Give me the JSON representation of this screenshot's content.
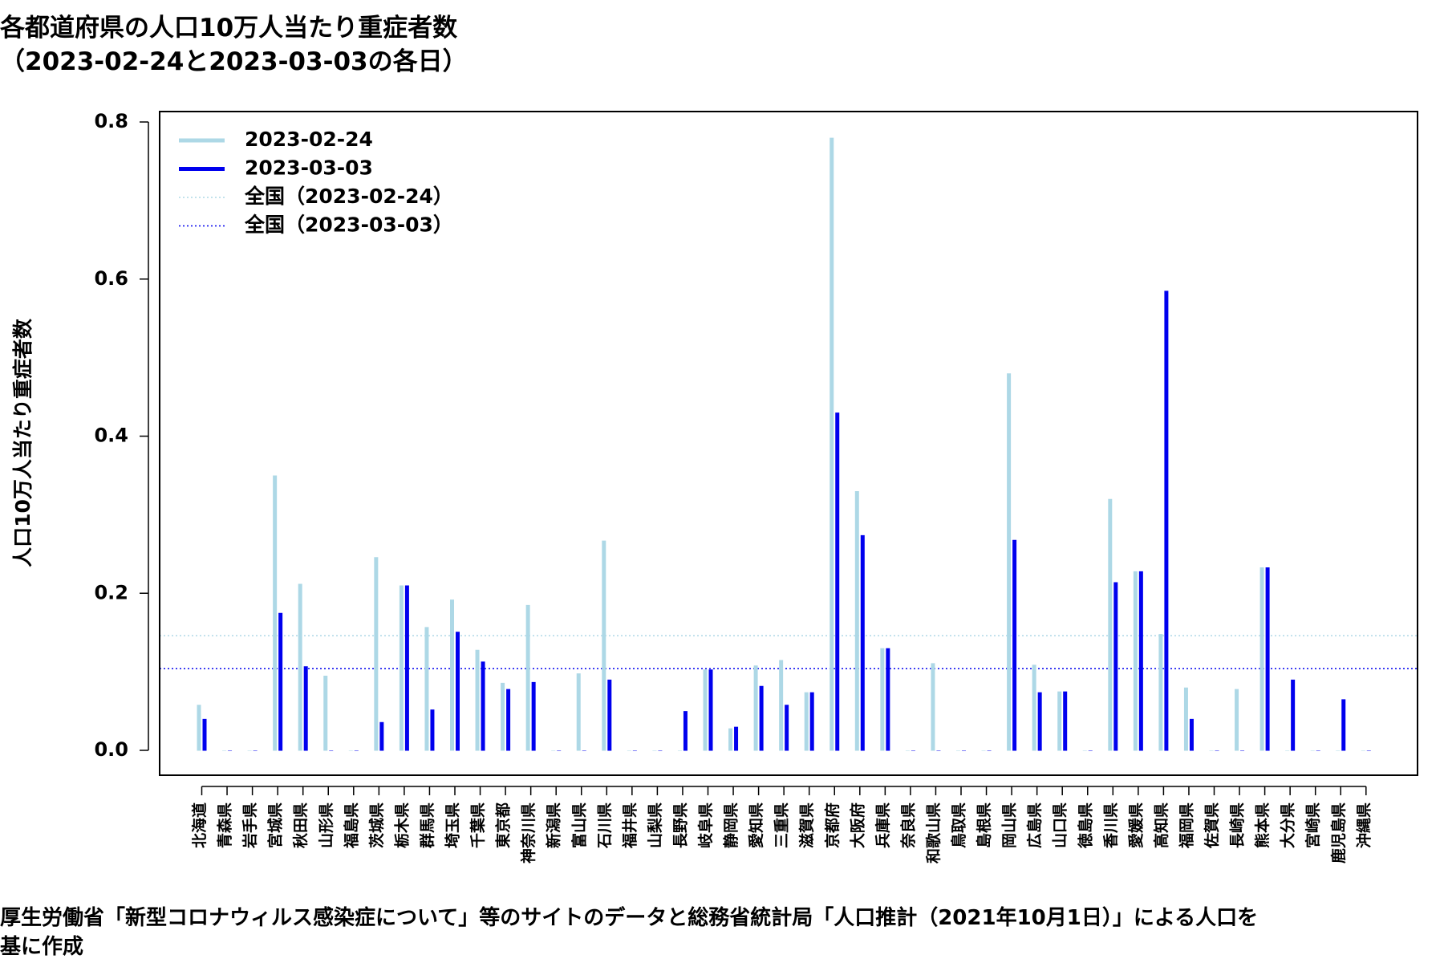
{
  "title": {
    "line1": "各都道府県の人口10万人当たり重症者数",
    "line2": "（2023-02-24と2023-03-03の各日）"
  },
  "footnote": {
    "line1": "厚生労働省「新型コロナウィルス感染症について」等のサイトのデータと総務省統計局「人口推計（2021年10月1日）」による人口を",
    "line2": "基に作成"
  },
  "colors": {
    "series_0224": "#add8e6",
    "series_0303": "#0000ee",
    "national_0224": "#add8e6",
    "national_0303": "#0000ee"
  },
  "chart_data": {
    "type": "bar",
    "title": "各都道府県の人口10万人当たり重症者数",
    "subtitle": "（2023-02-24と2023-03-03の各日）",
    "ylabel": "人口10万人当たり重症者数",
    "xlabel": "",
    "ylim": [
      0,
      0.8
    ],
    "yticks": [
      0.0,
      0.2,
      0.4,
      0.6,
      0.8
    ],
    "ytick_labels": [
      "0.0",
      "0.2",
      "0.4",
      "0.6",
      "0.8"
    ],
    "grid": false,
    "legend_position": "top-left",
    "legend": [
      "2023-02-24",
      "2023-03-03",
      "全国（2023-02-24）",
      "全国（2023-03-03）"
    ],
    "categories": [
      "北海道",
      "青森県",
      "岩手県",
      "宮城県",
      "秋田県",
      "山形県",
      "福島県",
      "茨城県",
      "栃木県",
      "群馬県",
      "埼玉県",
      "千葉県",
      "東京都",
      "神奈川県",
      "新潟県",
      "富山県",
      "石川県",
      "福井県",
      "山梨県",
      "長野県",
      "岐阜県",
      "静岡県",
      "愛知県",
      "三重県",
      "滋賀県",
      "京都府",
      "大阪府",
      "兵庫県",
      "奈良県",
      "和歌山県",
      "鳥取県",
      "島根県",
      "岡山県",
      "広島県",
      "山口県",
      "徳島県",
      "香川県",
      "愛媛県",
      "高知県",
      "福岡県",
      "佐賀県",
      "長崎県",
      "熊本県",
      "大分県",
      "宮崎県",
      "鹿児島県",
      "沖縄県"
    ],
    "series": [
      {
        "name": "2023-02-24",
        "values": [
          0.058,
          0,
          0,
          0.35,
          0.212,
          0.095,
          0,
          0.246,
          0.21,
          0.157,
          0.192,
          0.128,
          0.086,
          0.185,
          0,
          0.098,
          0.267,
          0,
          0,
          0,
          0.103,
          0.028,
          0.108,
          0.115,
          0.074,
          0.78,
          0.33,
          0.13,
          0,
          0.111,
          0,
          0,
          0.48,
          0.109,
          0.075,
          0,
          0.32,
          0.228,
          0.148,
          0.08,
          0,
          0.078,
          0.233,
          0,
          0,
          0,
          0
        ]
      },
      {
        "name": "2023-03-03",
        "values": [
          0.04,
          0,
          0,
          0.175,
          0.107,
          0,
          0,
          0.036,
          0.21,
          0.052,
          0.151,
          0.113,
          0.078,
          0.087,
          0,
          0,
          0.09,
          0,
          0,
          0.05,
          0.103,
          0.03,
          0.082,
          0.058,
          0.074,
          0.43,
          0.274,
          0.13,
          0,
          0,
          0,
          0,
          0.268,
          0.074,
          0.075,
          0,
          0.214,
          0.228,
          0.585,
          0.04,
          0,
          0,
          0.233,
          0.09,
          0,
          0.065,
          0
        ]
      }
    ],
    "reference_lines": [
      {
        "name": "全国（2023-02-24）",
        "value": 0.146
      },
      {
        "name": "全国（2023-03-03）",
        "value": 0.104
      }
    ]
  }
}
